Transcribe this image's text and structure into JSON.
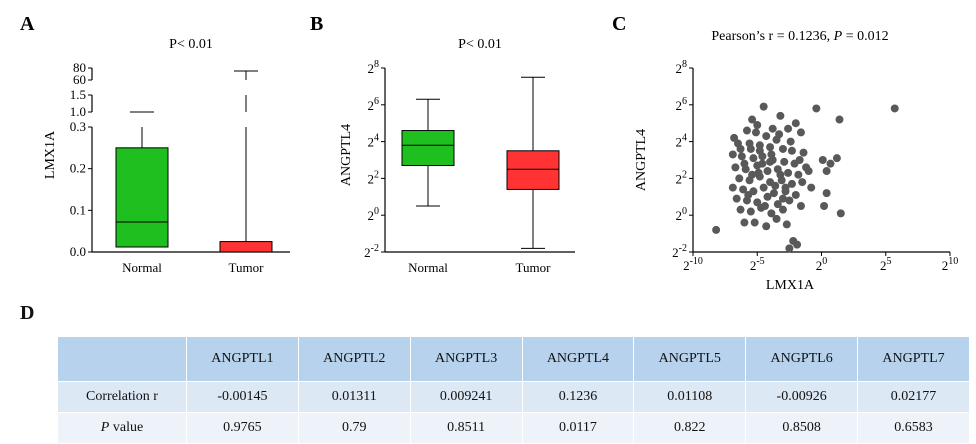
{
  "panels": {
    "A": {
      "letter": "A",
      "title": "P< 0.01"
    },
    "B": {
      "letter": "B",
      "title": "P< 0.01"
    },
    "C": {
      "letter": "C",
      "title_prefix": "Pearson’s r = 0.1236, ",
      "title_p": "P",
      "title_suffix": " = 0.012"
    },
    "D": {
      "letter": "D"
    }
  },
  "colors": {
    "normal": "#1fbf1f",
    "tumor": "#ff3333",
    "scatter": "#595959",
    "table_head": "#b6d2ec"
  },
  "chart_data": [
    {
      "type": "box",
      "panel": "A",
      "title": "P< 0.01",
      "ylabel": "LMX1A",
      "categories": [
        "Normal",
        "Tumor"
      ],
      "y_ticks": [
        "0.0",
        "0.1",
        "0.2",
        "0.3",
        "1.0",
        "1.5",
        "60",
        "80"
      ],
      "y_axis": "broken",
      "boxes": [
        {
          "name": "Normal",
          "min": 0.012,
          "q1": 0.012,
          "median": 0.072,
          "q3": 0.25,
          "max": 1.0,
          "color": "#1fbf1f"
        },
        {
          "name": "Tumor",
          "min": 0.0,
          "q1": 0.0,
          "median": 0.0,
          "q3": 0.025,
          "max": 75,
          "color": "#ff3333"
        }
      ]
    },
    {
      "type": "box",
      "panel": "B",
      "title": "P< 0.01",
      "ylabel": "ANGPTL4",
      "y_scale": "log2",
      "categories": [
        "Normal",
        "Tumor"
      ],
      "y_ticks_exp": [
        -2,
        0,
        2,
        4,
        6,
        8
      ],
      "boxes": [
        {
          "name": "Normal",
          "min_exp": 0.5,
          "q1_exp": 2.7,
          "median_exp": 3.8,
          "q3_exp": 4.6,
          "max_exp": 6.3,
          "color": "#1fbf1f"
        },
        {
          "name": "Tumor",
          "min_exp": -1.8,
          "q1_exp": 1.4,
          "median_exp": 2.5,
          "q3_exp": 3.5,
          "max_exp": 7.5,
          "color": "#ff3333"
        }
      ]
    },
    {
      "type": "scatter",
      "panel": "C",
      "title": "Pearson’s r = 0.1236, P = 0.012",
      "xlabel": "LMX1A",
      "ylabel": "ANGPTL4",
      "x_scale": "log2",
      "y_scale": "log2",
      "x_ticks_exp": [
        -10,
        -5,
        0,
        5,
        10
      ],
      "y_ticks_exp": [
        -2,
        0,
        2,
        4,
        6,
        8
      ],
      "points": [
        [
          -4.5,
          5.9
        ],
        [
          -3.2,
          5.4
        ],
        [
          -0.4,
          5.8
        ],
        [
          1.4,
          5.2
        ],
        [
          5.7,
          5.8
        ],
        [
          -5.4,
          5.2
        ],
        [
          -2.0,
          5.0
        ],
        [
          -3.8,
          4.7
        ],
        [
          -5.8,
          4.6
        ],
        [
          -6.8,
          4.2
        ],
        [
          -5.0,
          4.9
        ],
        [
          -2.6,
          4.7
        ],
        [
          -1.6,
          4.5
        ],
        [
          -4.3,
          4.3
        ],
        [
          -3.5,
          4.1
        ],
        [
          -6.5,
          3.9
        ],
        [
          -5.6,
          3.9
        ],
        [
          -4.8,
          3.8
        ],
        [
          -4.0,
          3.7
        ],
        [
          -3.0,
          3.6
        ],
        [
          -2.3,
          3.5
        ],
        [
          -1.4,
          3.4
        ],
        [
          -6.9,
          3.3
        ],
        [
          -6.2,
          3.2
        ],
        [
          -5.3,
          3.1
        ],
        [
          -4.6,
          3.2
        ],
        [
          -3.8,
          3.0
        ],
        [
          -2.9,
          2.9
        ],
        [
          -2.1,
          2.8
        ],
        [
          0.1,
          3.0
        ],
        [
          0.7,
          2.8
        ],
        [
          1.2,
          3.1
        ],
        [
          -6.7,
          2.6
        ],
        [
          -5.9,
          2.5
        ],
        [
          -5.0,
          2.7
        ],
        [
          -4.2,
          2.4
        ],
        [
          -3.4,
          2.5
        ],
        [
          -2.6,
          2.3
        ],
        [
          -1.8,
          2.2
        ],
        [
          -1.0,
          2.4
        ],
        [
          -6.4,
          2.0
        ],
        [
          -5.6,
          1.9
        ],
        [
          -4.8,
          2.1
        ],
        [
          -4.0,
          1.8
        ],
        [
          -3.1,
          1.9
        ],
        [
          -2.3,
          1.7
        ],
        [
          -1.5,
          1.8
        ],
        [
          -6.9,
          1.5
        ],
        [
          -6.1,
          1.4
        ],
        [
          -5.3,
          1.3
        ],
        [
          -4.5,
          1.5
        ],
        [
          -3.7,
          1.2
        ],
        [
          -2.8,
          1.3
        ],
        [
          -2.0,
          1.1
        ],
        [
          -0.8,
          1.5
        ],
        [
          0.4,
          1.2
        ],
        [
          -6.6,
          0.9
        ],
        [
          -5.8,
          0.8
        ],
        [
          -5.0,
          0.7
        ],
        [
          -4.2,
          1.0
        ],
        [
          -3.4,
          0.6
        ],
        [
          -2.5,
          0.8
        ],
        [
          -1.6,
          0.5
        ],
        [
          -6.3,
          0.3
        ],
        [
          -5.5,
          0.2
        ],
        [
          -4.7,
          0.4
        ],
        [
          -3.9,
          0.1
        ],
        [
          -3.0,
          0.3
        ],
        [
          -5.2,
          -0.4
        ],
        [
          -4.3,
          -0.6
        ],
        [
          -3.5,
          -0.2
        ],
        [
          -2.7,
          -0.5
        ],
        [
          -8.2,
          -0.8
        ],
        [
          -6.0,
          -0.4
        ],
        [
          0.2,
          0.5
        ],
        [
          1.5,
          0.1
        ],
        [
          -2.2,
          -1.4
        ],
        [
          -2.5,
          -1.8
        ],
        [
          -1.9,
          -1.6
        ],
        [
          -4.8,
          3.5
        ],
        [
          -4.0,
          2.9
        ],
        [
          -5.5,
          3.6
        ],
        [
          -3.3,
          4.4
        ],
        [
          -6.0,
          2.8
        ],
        [
          -4.9,
          2.3
        ],
        [
          -3.6,
          1.6
        ],
        [
          -5.7,
          1.1
        ],
        [
          -4.4,
          0.5
        ],
        [
          -3.2,
          2.2
        ],
        [
          -2.4,
          4.0
        ],
        [
          -1.7,
          3.0
        ],
        [
          -1.2,
          2.6
        ],
        [
          0.4,
          2.4
        ],
        [
          -5.1,
          4.5
        ],
        [
          -6.3,
          3.6
        ],
        [
          -3.9,
          3.3
        ],
        [
          -2.8,
          1.5
        ],
        [
          -4.6,
          2.8
        ],
        [
          -5.4,
          2.2
        ],
        [
          -3.0,
          0.9
        ]
      ]
    }
  ],
  "table": {
    "corner": "",
    "columns": [
      "ANGPTL1",
      "ANGPTL2",
      "ANGPTL3",
      "ANGPTL4",
      "ANGPTL5",
      "ANGPTL6",
      "ANGPTL7"
    ],
    "rows": [
      {
        "label": "Correlation  r",
        "label_italic_part": "",
        "values": [
          "-0.00145",
          "0.01311",
          "0.009241",
          "0.1236",
          "0.01108",
          "-0.00926",
          "0.02177"
        ]
      },
      {
        "label": " value",
        "label_italic_part": "P",
        "values": [
          "0.9765",
          "0.79",
          "0.8511",
          "0.0117",
          "0.822",
          "0.8508",
          "0.6583"
        ]
      }
    ]
  }
}
